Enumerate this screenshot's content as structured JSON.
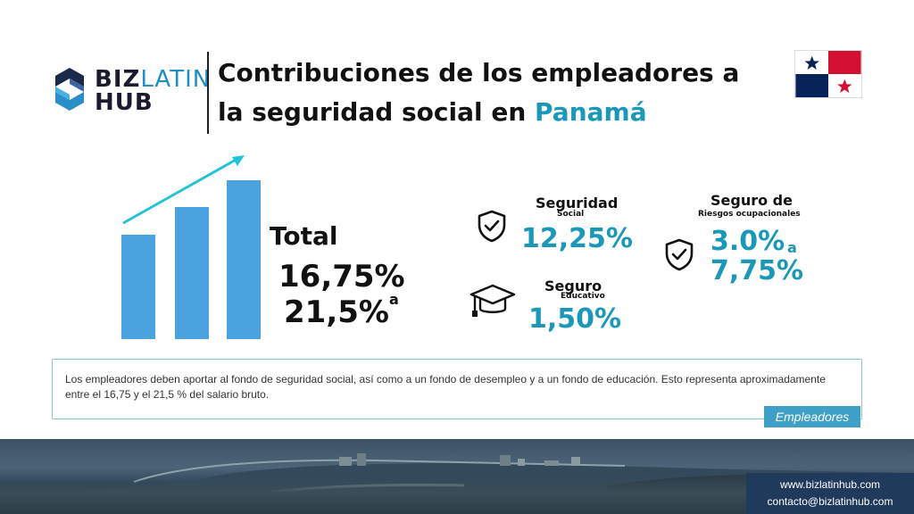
{
  "brand": {
    "line1_biz": "BIZ",
    "line1_latin": "LATIN",
    "line2": "HUB"
  },
  "header": {
    "title_part1": "Contribuciones de los empleadores a la seguridad social en ",
    "title_accent": "Panamá"
  },
  "colors": {
    "accent": "#1b97b8",
    "bar": "#4aa3df",
    "arrow": "#22c3d8",
    "flag_red": "#d21034",
    "flag_blue": "#072357"
  },
  "total": {
    "label": "Total",
    "value_min": "16,75%",
    "connector": "a",
    "value_max": "21,5%"
  },
  "growth_chart": {
    "bar_levels": [
      0.55,
      0.7,
      0.84
    ],
    "arrow": "trend-up"
  },
  "items": [
    {
      "icon": "shield-check-icon",
      "title": "Seguridad",
      "subtitle": "Social",
      "value": "12,25%"
    },
    {
      "icon": "graduation-cap-icon",
      "title": "Seguro",
      "subtitle": "Educativo",
      "value": "1,50%"
    },
    {
      "icon": "shield-check-icon",
      "title": "Seguro de",
      "subtitle": "Riesgos ocupacionales",
      "value_min": "3.0%",
      "connector": "a",
      "value_max": "7,75%"
    }
  ],
  "description": {
    "text": "Los empleadores deben aportar al fondo de seguridad social, así como a un fondo de desempleo y a un fondo de educación. Esto representa aproximadamente entre el 16,75 y el 21,5 % del salario bruto.",
    "tag": "Empleadores"
  },
  "contact": {
    "website": "www.bizlatinhub.com",
    "email": "contacto@bizlatinhub.com"
  }
}
